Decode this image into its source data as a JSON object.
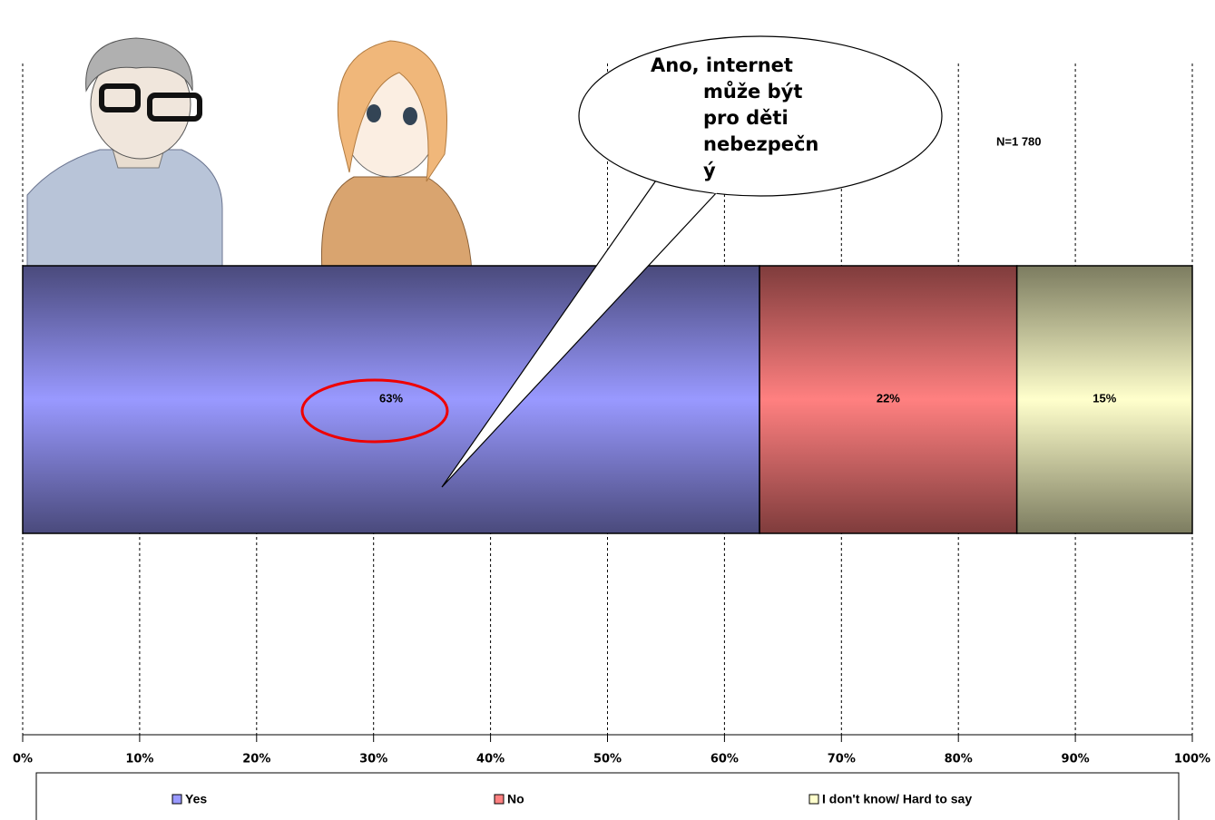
{
  "chart_data": {
    "type": "stacked-barh",
    "annotation": "N=1 780",
    "bubble_lines": [
      "Ano, internet",
      "může být",
      "pro děti",
      "nebezpečn",
      "ý"
    ],
    "series": [
      {
        "name": "Yes",
        "color": "#9999ff",
        "edge": "#4a4a7c",
        "values": [
          63
        ],
        "value_labels": [
          "63%"
        ]
      },
      {
        "name": "No",
        "color": "#ff8080",
        "edge": "#7f3c3c",
        "values": [
          22
        ],
        "value_labels": [
          "22%"
        ]
      },
      {
        "name": "I don't know/ Hard to say",
        "color": "#ffffcc",
        "edge": "#7c7c60",
        "values": [
          15
        ],
        "value_labels": [
          "15%"
        ]
      }
    ],
    "xlim": [
      0,
      100
    ],
    "xticks": [
      {
        "value": 0,
        "label": "0%"
      },
      {
        "value": 10,
        "label": "10%"
      },
      {
        "value": 20,
        "label": "20%"
      },
      {
        "value": 30,
        "label": "30%"
      },
      {
        "value": 40,
        "label": "40%"
      },
      {
        "value": 50,
        "label": "50%"
      },
      {
        "value": 60,
        "label": "60%"
      },
      {
        "value": 70,
        "label": "70%"
      },
      {
        "value": 80,
        "label": "80%"
      },
      {
        "value": 90,
        "label": "90%"
      },
      {
        "value": 100,
        "label": "100%"
      }
    ],
    "grid": true
  }
}
